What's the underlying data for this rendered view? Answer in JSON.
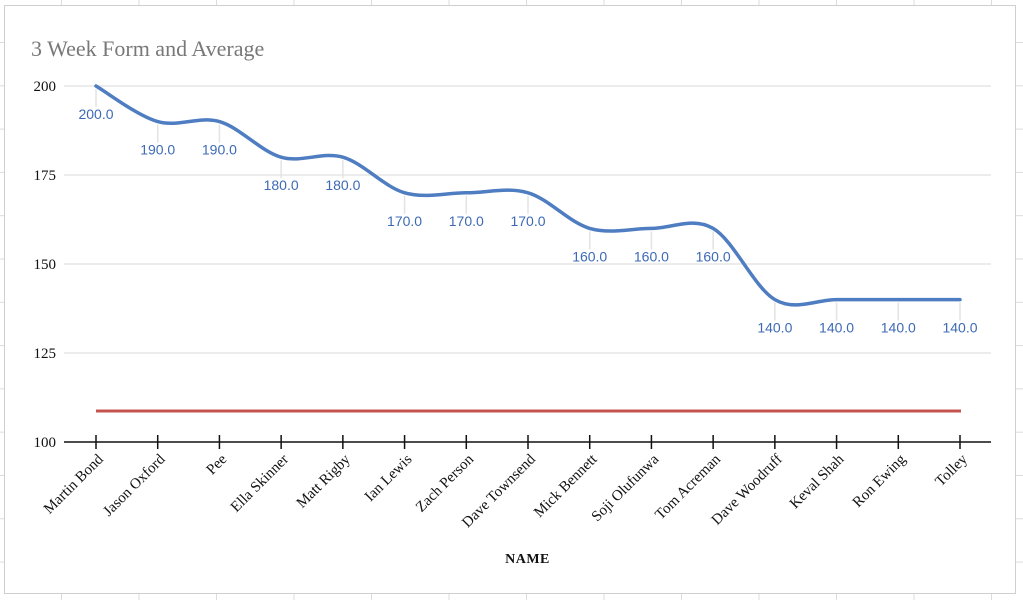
{
  "chart": {
    "title": "3 Week Form and Average"
  },
  "chart_data": {
    "type": "line",
    "title": "3 Week Form and Average",
    "xlabel": "NAME",
    "ylabel": "",
    "ylim": [
      100,
      200
    ],
    "y_ticks": [
      200,
      175,
      150,
      125,
      100
    ],
    "grid": "horizontal",
    "legend": "none",
    "categories": [
      "Martin Bond",
      "Jason Oxford",
      "Pee",
      "Ella Skinner",
      "Matt Rigby",
      "Ian Lewis",
      "Zach Person",
      "Dave Townsend",
      "Mick Bennett",
      "Soji Olufunwa",
      "Tom Acreman",
      "Dave Woodruff",
      "Keval Shah",
      "Ron Ewing",
      "Tolley"
    ],
    "series": [
      {
        "name": "3 Week Form",
        "type": "smooth-line",
        "color": "#4e7dc1",
        "label_color": "#3d6ab5",
        "values": [
          200,
          190,
          190,
          180,
          180,
          170,
          170,
          170,
          160,
          160,
          160,
          140,
          140,
          140,
          140
        ],
        "data_labels": [
          "200.0",
          "190.0",
          "190.0",
          "180.0",
          "180.0",
          "170.0",
          "170.0",
          "170.0",
          "160.0",
          "160.0",
          "160.0",
          "140.0",
          "140.0",
          "140.0",
          "140.0"
        ]
      },
      {
        "name": "Average",
        "type": "horizontal-line",
        "color": "#c4534e",
        "value": 108.7
      }
    ],
    "colors": {
      "title": "#787878",
      "axis": "#111111",
      "gridline": "#e6e6e6",
      "stub": "#e3e3e3",
      "card_border": "#cfcfcf"
    }
  }
}
